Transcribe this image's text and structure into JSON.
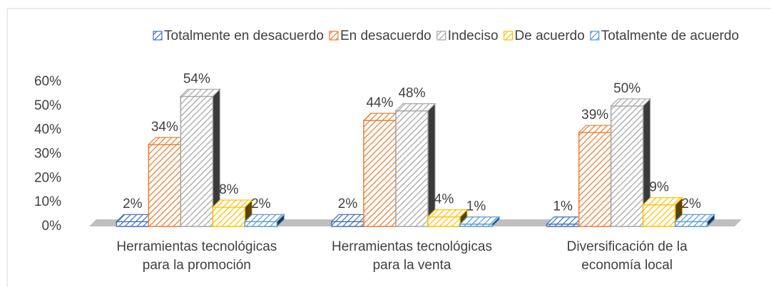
{
  "chart_data": {
    "type": "bar3d",
    "categories": [
      "Herramientas tecnológicas para la promoción",
      "Herramientas tecnológicas para la venta",
      "Diversificación de la economía local"
    ],
    "series": [
      {
        "name": "Totalmente en desacuerdo",
        "color": "#4472c4",
        "values": [
          2,
          2,
          1
        ],
        "value_labels": [
          "2%",
          "2%",
          "1%"
        ]
      },
      {
        "name": "En desacuerdo",
        "color": "#ed7d31",
        "values": [
          34,
          44,
          39
        ],
        "value_labels": [
          "34%",
          "44%",
          "39%"
        ]
      },
      {
        "name": "Indeciso",
        "color": "#a5a5a5",
        "values": [
          54,
          48,
          50
        ],
        "value_labels": [
          "54%",
          "48%",
          "50%"
        ]
      },
      {
        "name": "De acuerdo",
        "color": "#ffc000",
        "values": [
          8,
          4,
          9
        ],
        "value_labels": [
          "8%",
          "4%",
          "9%"
        ]
      },
      {
        "name": "Totalmente de acuerdo",
        "color": "#5b9bd5",
        "values": [
          2,
          1,
          2
        ],
        "value_labels": [
          "2%",
          "1%",
          "2%"
        ]
      }
    ],
    "ylim": [
      0,
      60
    ],
    "yticks": [
      {
        "value": 0,
        "label": "0%"
      },
      {
        "value": 10,
        "label": "10%"
      },
      {
        "value": 20,
        "label": "20%"
      },
      {
        "value": 30,
        "label": "30%"
      },
      {
        "value": 40,
        "label": "40%"
      },
      {
        "value": 50,
        "label": "50%"
      },
      {
        "value": 60,
        "label": "60%"
      }
    ],
    "legend": "top",
    "grid": false
  }
}
